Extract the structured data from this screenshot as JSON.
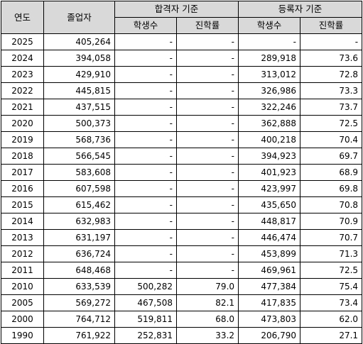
{
  "headers": {
    "year": "연도",
    "graduates": "졸업자",
    "admitted_group": "합격자 기준",
    "registered_group": "등록자 기준",
    "students": "학생수",
    "rate": "진학률"
  },
  "rows": [
    {
      "year": "2025",
      "graduates": "405,264",
      "adm_students": "-",
      "adm_rate": "-",
      "reg_students": "-",
      "reg_rate": "-"
    },
    {
      "year": "2024",
      "graduates": "394,058",
      "adm_students": "-",
      "adm_rate": "-",
      "reg_students": "289,918",
      "reg_rate": "73.6"
    },
    {
      "year": "2023",
      "graduates": "429,910",
      "adm_students": "-",
      "adm_rate": "-",
      "reg_students": "313,012",
      "reg_rate": "72.8"
    },
    {
      "year": "2022",
      "graduates": "445,815",
      "adm_students": "-",
      "adm_rate": "-",
      "reg_students": "326,986",
      "reg_rate": "73.3"
    },
    {
      "year": "2021",
      "graduates": "437,515",
      "adm_students": "-",
      "adm_rate": "-",
      "reg_students": "322,246",
      "reg_rate": "73.7"
    },
    {
      "year": "2020",
      "graduates": "500,373",
      "adm_students": "-",
      "adm_rate": "-",
      "reg_students": "362,888",
      "reg_rate": "72.5"
    },
    {
      "year": "2019",
      "graduates": "568,736",
      "adm_students": "-",
      "adm_rate": "-",
      "reg_students": "400,218",
      "reg_rate": "70.4"
    },
    {
      "year": "2018",
      "graduates": "566,545",
      "adm_students": "-",
      "adm_rate": "-",
      "reg_students": "394,923",
      "reg_rate": "69.7"
    },
    {
      "year": "2017",
      "graduates": "583,608",
      "adm_students": "-",
      "adm_rate": "-",
      "reg_students": "401,923",
      "reg_rate": "68.9"
    },
    {
      "year": "2016",
      "graduates": "607,598",
      "adm_students": "-",
      "adm_rate": "-",
      "reg_students": "423,997",
      "reg_rate": "69.8"
    },
    {
      "year": "2015",
      "graduates": "615,462",
      "adm_students": "-",
      "adm_rate": "-",
      "reg_students": "435,650",
      "reg_rate": "70.8"
    },
    {
      "year": "2014",
      "graduates": "632,983",
      "adm_students": "-",
      "adm_rate": "-",
      "reg_students": "448,817",
      "reg_rate": "70.9"
    },
    {
      "year": "2013",
      "graduates": "631,197",
      "adm_students": "-",
      "adm_rate": "-",
      "reg_students": "446,474",
      "reg_rate": "70.7"
    },
    {
      "year": "2012",
      "graduates": "636,724",
      "adm_students": "-",
      "adm_rate": "-",
      "reg_students": "453,899",
      "reg_rate": "71.3"
    },
    {
      "year": "2011",
      "graduates": "648,468",
      "adm_students": "-",
      "adm_rate": "-",
      "reg_students": "469,961",
      "reg_rate": "72.5"
    },
    {
      "year": "2010",
      "graduates": "633,539",
      "adm_students": "500,282",
      "adm_rate": "79.0",
      "reg_students": "477,384",
      "reg_rate": "75.4"
    },
    {
      "year": "2005",
      "graduates": "569,272",
      "adm_students": "467,508",
      "adm_rate": "82.1",
      "reg_students": "417,835",
      "reg_rate": "73.4"
    },
    {
      "year": "2000",
      "graduates": "764,712",
      "adm_students": "519,811",
      "adm_rate": "68.0",
      "reg_students": "473,803",
      "reg_rate": "62.0"
    },
    {
      "year": "1990",
      "graduates": "761,922",
      "adm_students": "252,831",
      "adm_rate": "33.2",
      "reg_students": "206,790",
      "reg_rate": "27.1"
    }
  ]
}
